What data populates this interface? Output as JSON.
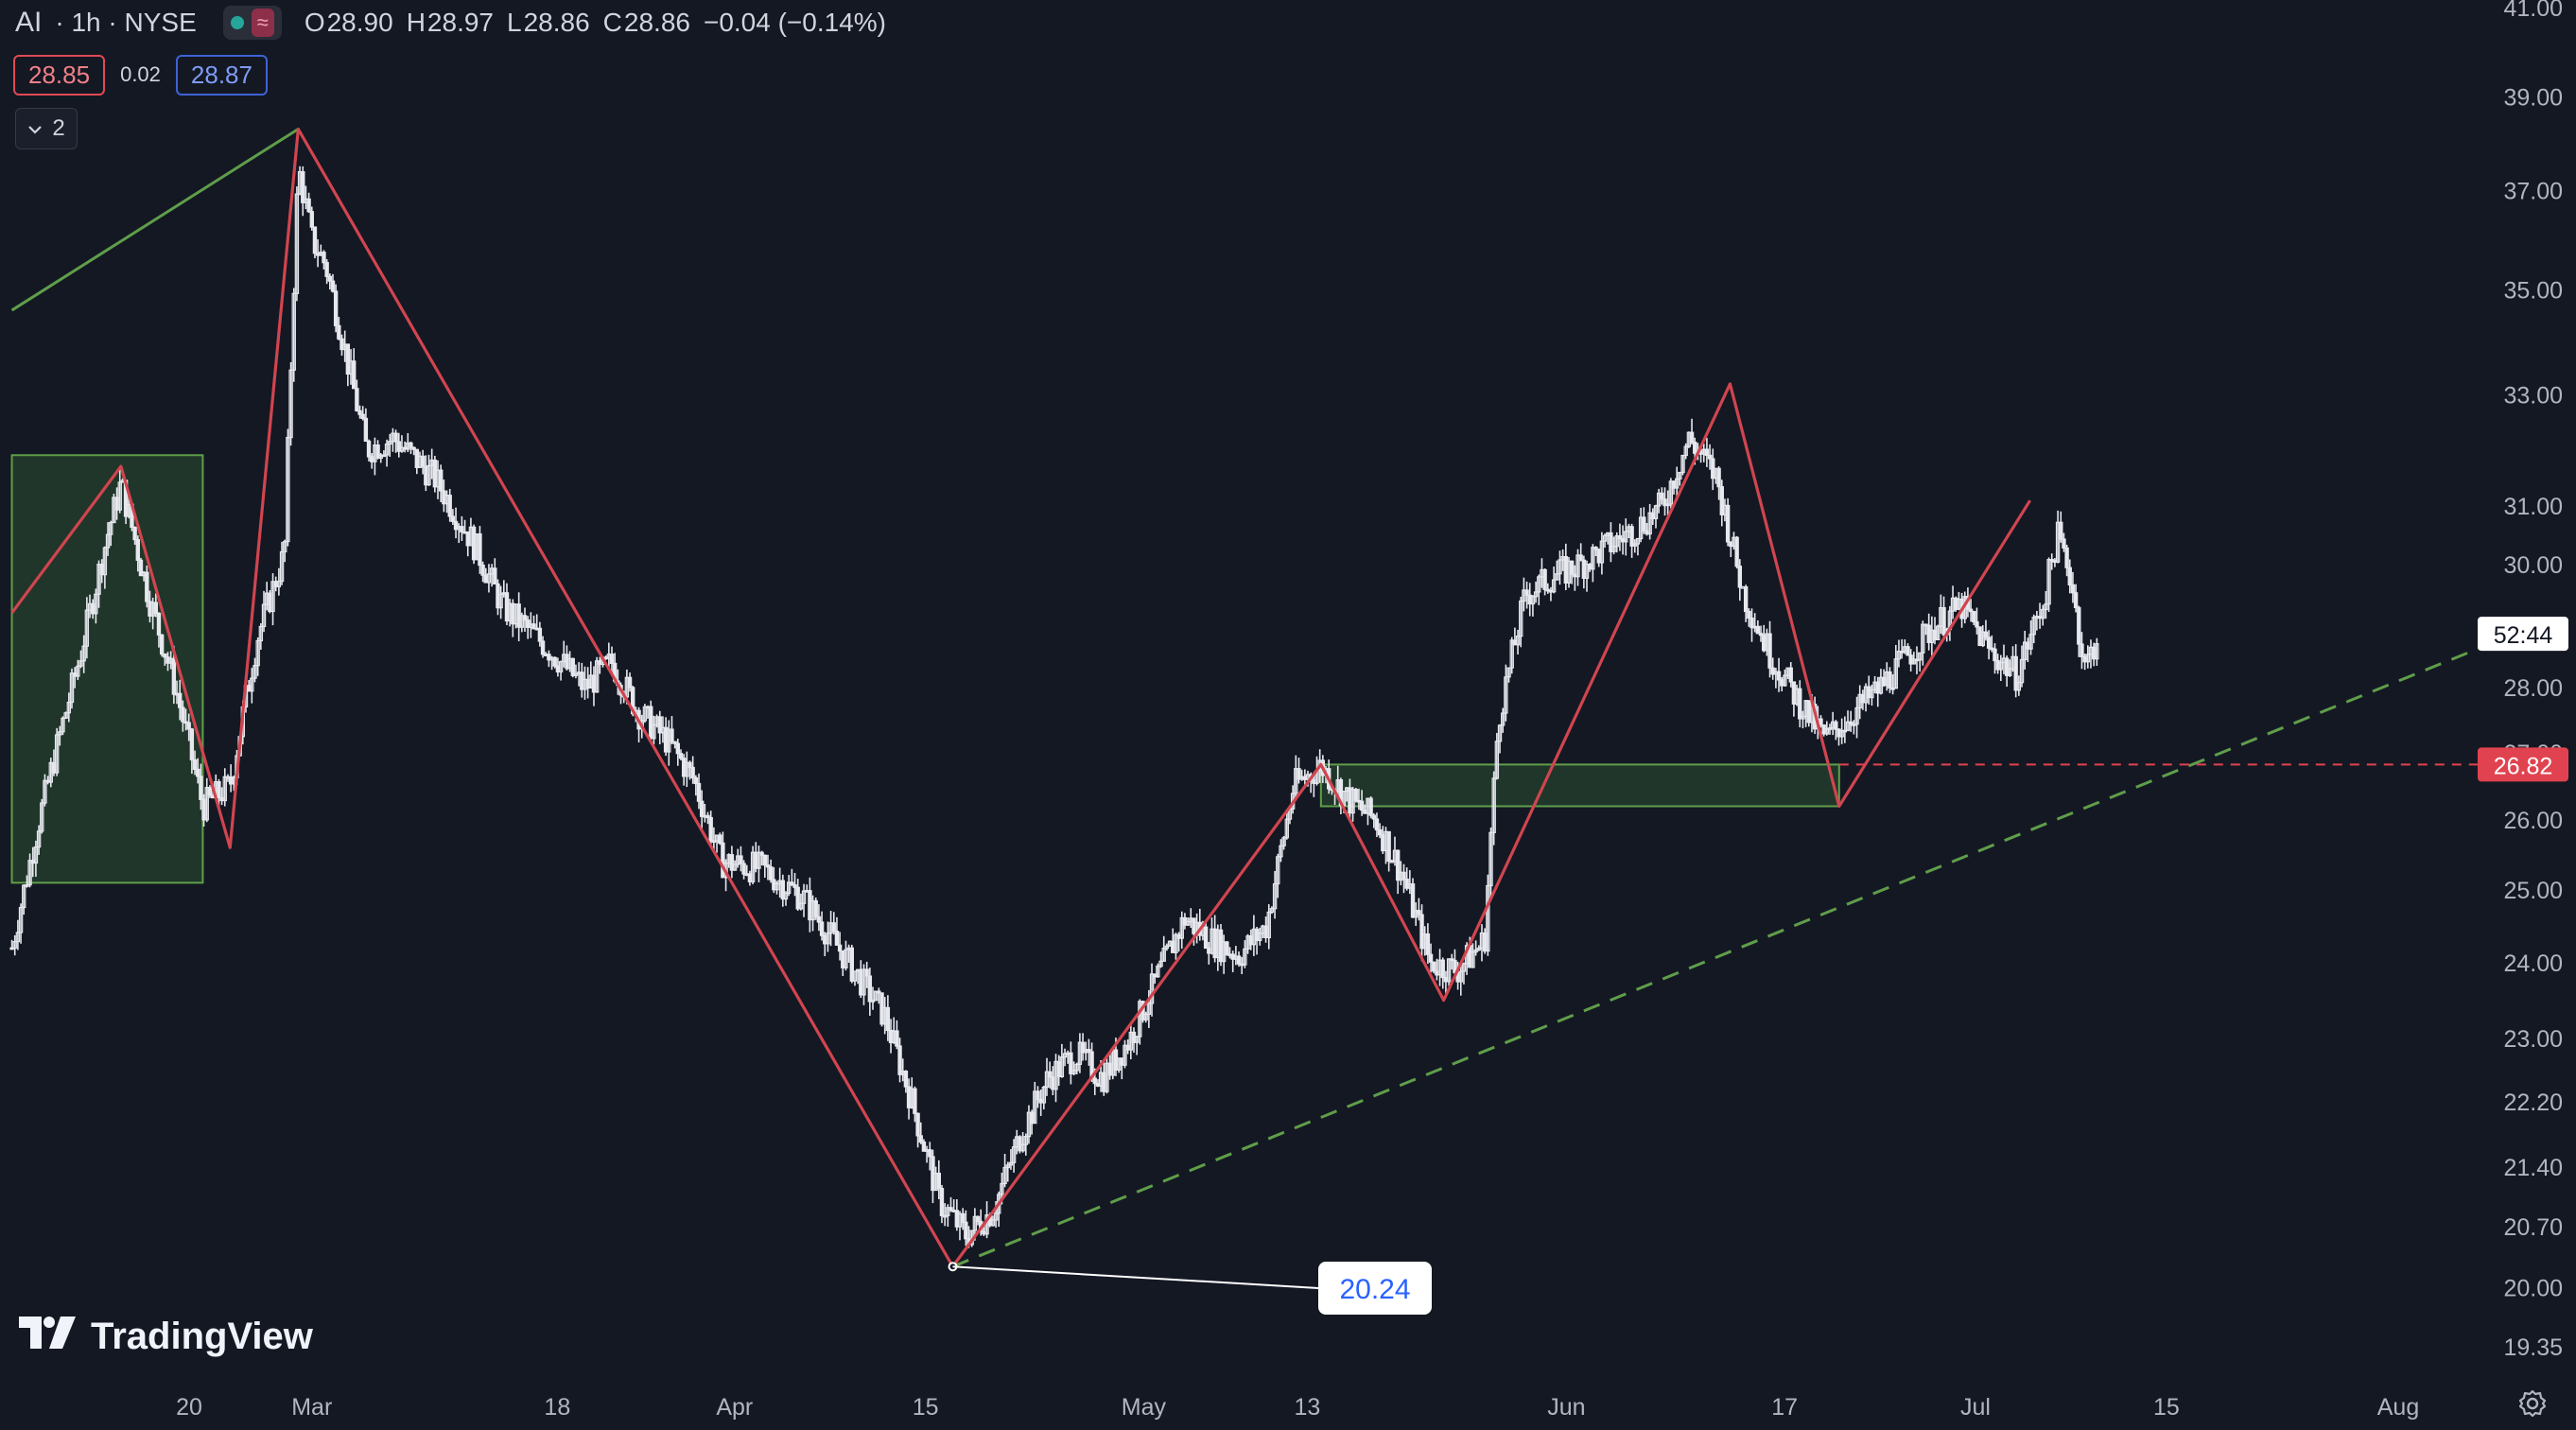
{
  "header": {
    "symbol": "AI",
    "timeframe": "· 1h · NYSE",
    "ohlc": [
      {
        "k": "O",
        "v": "28.90"
      },
      {
        "k": "H",
        "v": "28.97"
      },
      {
        "k": "L",
        "v": "28.86"
      },
      {
        "k": "C",
        "v": "28.86"
      }
    ],
    "change": "−0.04 (−0.14%)",
    "bid": "28.85",
    "spread": "0.02",
    "ask": "28.87",
    "indicators_count": "2",
    "market_status_icon": "market-open-dot-icon",
    "extended_icon": "wave-icon"
  },
  "branding": {
    "logo_text": "TradingView"
  },
  "colors": {
    "background": "#141823",
    "candle": "#e6e8ee",
    "zigzag": "#d0454f",
    "green_line": "#5f9e4a",
    "box_fill": "#2f5a32",
    "price_tag": "#e0434f"
  },
  "chart_data": {
    "type": "candlestick",
    "symbol": "AI",
    "interval": "1h",
    "exchange": "NYSE",
    "y_scale": "log",
    "ylim": [
      19.2,
      41.2
    ],
    "y_ticks": [
      "19.35",
      "20.00",
      "20.70",
      "21.40",
      "22.20",
      "23.00",
      "24.00",
      "25.00",
      "26.00",
      "27.00",
      "28.00",
      "30.00",
      "31.00",
      "33.00",
      "35.00",
      "37.00",
      "39.00",
      "41.00"
    ],
    "x_ticks": [
      {
        "label": "20",
        "day": 20
      },
      {
        "label": "Mar",
        "day": 29
      },
      {
        "label": "18",
        "day": 47
      },
      {
        "label": "Apr",
        "day": 60
      },
      {
        "label": "15",
        "day": 74
      },
      {
        "label": "May",
        "day": 90
      },
      {
        "label": "13",
        "day": 102
      },
      {
        "label": "Jun",
        "day": 121
      },
      {
        "label": "17",
        "day": 137
      },
      {
        "label": "Jul",
        "day": 151
      },
      {
        "label": "15",
        "day": 165
      },
      {
        "label": "Aug",
        "day": 182
      }
    ],
    "xlim": [
      7,
      191
    ],
    "price_path": [
      {
        "day": 7,
        "price": 24.2
      },
      {
        "day": 9,
        "price": 26.0
      },
      {
        "day": 12,
        "price": 28.5
      },
      {
        "day": 14,
        "price": 30.5
      },
      {
        "day": 15,
        "price": 31.4
      },
      {
        "day": 17,
        "price": 29.5
      },
      {
        "day": 19,
        "price": 28.0
      },
      {
        "day": 21,
        "price": 26.2
      },
      {
        "day": 23,
        "price": 26.5
      },
      {
        "day": 25,
        "price": 28.8
      },
      {
        "day": 27,
        "price": 30.2
      },
      {
        "day": 28,
        "price": 37.5
      },
      {
        "day": 29,
        "price": 36.0
      },
      {
        "day": 30,
        "price": 35.5
      },
      {
        "day": 33,
        "price": 32.0
      },
      {
        "day": 35,
        "price": 32.2
      },
      {
        "day": 38,
        "price": 31.5
      },
      {
        "day": 41,
        "price": 30.3
      },
      {
        "day": 43,
        "price": 29.3
      },
      {
        "day": 46,
        "price": 28.7
      },
      {
        "day": 49,
        "price": 28.0
      },
      {
        "day": 51,
        "price": 28.4
      },
      {
        "day": 53,
        "price": 27.6
      },
      {
        "day": 55,
        "price": 27.2
      },
      {
        "day": 57,
        "price": 26.6
      },
      {
        "day": 59,
        "price": 25.4
      },
      {
        "day": 62,
        "price": 25.3
      },
      {
        "day": 65,
        "price": 24.9
      },
      {
        "day": 68,
        "price": 24.1
      },
      {
        "day": 71,
        "price": 23.3
      },
      {
        "day": 73,
        "price": 22.2
      },
      {
        "day": 75,
        "price": 21.0
      },
      {
        "day": 77,
        "price": 20.6
      },
      {
        "day": 79,
        "price": 20.9
      },
      {
        "day": 81,
        "price": 21.8
      },
      {
        "day": 83,
        "price": 22.5
      },
      {
        "day": 85,
        "price": 22.8
      },
      {
        "day": 87,
        "price": 22.5
      },
      {
        "day": 89,
        "price": 23.0
      },
      {
        "day": 91,
        "price": 23.8
      },
      {
        "day": 93,
        "price": 24.6
      },
      {
        "day": 95,
        "price": 24.3
      },
      {
        "day": 97,
        "price": 24.1
      },
      {
        "day": 99,
        "price": 24.5
      },
      {
        "day": 101,
        "price": 26.5
      },
      {
        "day": 103,
        "price": 26.8
      },
      {
        "day": 105,
        "price": 26.3
      },
      {
        "day": 107,
        "price": 26.0
      },
      {
        "day": 109,
        "price": 25.2
      },
      {
        "day": 111,
        "price": 24.0
      },
      {
        "day": 113,
        "price": 23.9
      },
      {
        "day": 115,
        "price": 24.3
      },
      {
        "day": 116,
        "price": 27.5
      },
      {
        "day": 118,
        "price": 29.5
      },
      {
        "day": 120,
        "price": 29.8
      },
      {
        "day": 122,
        "price": 30.0
      },
      {
        "day": 124,
        "price": 30.3
      },
      {
        "day": 126,
        "price": 30.6
      },
      {
        "day": 128,
        "price": 31.0
      },
      {
        "day": 130,
        "price": 32.2
      },
      {
        "day": 132,
        "price": 31.5
      },
      {
        "day": 134,
        "price": 29.5
      },
      {
        "day": 136,
        "price": 28.5
      },
      {
        "day": 138,
        "price": 27.8
      },
      {
        "day": 140,
        "price": 27.2
      },
      {
        "day": 142,
        "price": 27.6
      },
      {
        "day": 144,
        "price": 28.0
      },
      {
        "day": 146,
        "price": 28.5
      },
      {
        "day": 148,
        "price": 29.0
      },
      {
        "day": 150,
        "price": 29.3
      },
      {
        "day": 152,
        "price": 28.6
      },
      {
        "day": 154,
        "price": 28.2
      },
      {
        "day": 156,
        "price": 29.4
      },
      {
        "day": 157,
        "price": 30.5
      },
      {
        "day": 158,
        "price": 29.8
      },
      {
        "day": 159,
        "price": 28.3
      },
      {
        "day": 160,
        "price": 28.86
      }
    ],
    "zigzag": [
      {
        "day": 7,
        "price": 29.2
      },
      {
        "day": 15,
        "price": 31.7
      },
      {
        "day": 23,
        "price": 25.6
      },
      {
        "day": 28,
        "price": 38.3
      },
      {
        "day": 76,
        "price": 20.24
      },
      {
        "day": 103,
        "price": 26.82
      },
      {
        "day": 112,
        "price": 23.5
      },
      {
        "day": 133,
        "price": 33.2
      },
      {
        "day": 141,
        "price": 26.2
      },
      {
        "day": 155,
        "price": 31.1
      }
    ],
    "green_line": [
      {
        "day": 7,
        "price": 34.6
      },
      {
        "day": 28,
        "price": 38.3
      }
    ],
    "trend_line": {
      "from": {
        "day": 76,
        "price": 20.24
      },
      "to": {
        "day": 191,
        "price": 28.9
      }
    },
    "zones": [
      {
        "from_day": 7,
        "to_day": 21,
        "top": 31.9,
        "bottom": 25.1
      },
      {
        "from_day": 103,
        "to_day": 141,
        "top": 26.82,
        "bottom": 26.2
      }
    ],
    "horizontal_line": {
      "price": 26.82,
      "from_day": 141
    },
    "annotation": {
      "text": "20.24",
      "day": 76,
      "price": 20.24
    },
    "price_labels": {
      "level": "26.82",
      "current": "52:44"
    }
  }
}
